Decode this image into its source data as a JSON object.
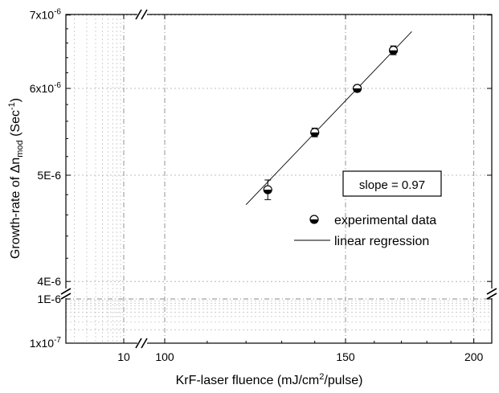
{
  "chart_data": {
    "type": "scatter",
    "xlabel": "KrF-laser fluence (mJ/cm",
    "xlabel_sup": "2",
    "xlabel_tail": "/pulse)",
    "ylabel_main": "Growth-rate of Δn",
    "ylabel_sub": "mod",
    "ylabel_paren": " (Sec",
    "ylabel_sup": "-1",
    "ylabel_close": ")",
    "x_ticks_left": [
      {
        "value": 10,
        "label": "10"
      }
    ],
    "x_ticks_main": [
      {
        "value": 100,
        "label": "100"
      },
      {
        "value": 150,
        "label": "150"
      },
      {
        "value": 200,
        "label": "200"
      }
    ],
    "y_ticks_main": [
      {
        "value": 4e-06,
        "label": "4E-6"
      },
      {
        "value": 5e-06,
        "label": "5E-6"
      },
      {
        "value": 6e-06,
        "label": "6x10",
        "exp": "-6"
      },
      {
        "value": 7e-06,
        "label": "7x10",
        "exp": "-6"
      }
    ],
    "y_ticks_low": [
      {
        "value": 1e-06,
        "label": "1E-6"
      },
      {
        "value": 1e-07,
        "label": "1x10",
        "exp": "-7"
      }
    ],
    "series": [
      {
        "name": "experimental data",
        "points": [
          {
            "x": 126,
            "y": 4.85e-06,
            "err": 1e-07
          },
          {
            "x": 140,
            "y": 5.47e-06,
            "err": 5e-08
          },
          {
            "x": 154,
            "y": 6e-06,
            "err": 4e-08
          },
          {
            "x": 167,
            "y": 6.5e-06,
            "err": 6e-08
          }
        ]
      },
      {
        "name": "linear regression",
        "line": {
          "x": [
            120,
            174
          ],
          "y": [
            4.7e-06,
            6.76e-06
          ]
        }
      }
    ],
    "annotation": "slope = 0.97",
    "legend": {
      "position": "right-middle"
    },
    "grid": true,
    "log_x": true,
    "log_y": true
  }
}
